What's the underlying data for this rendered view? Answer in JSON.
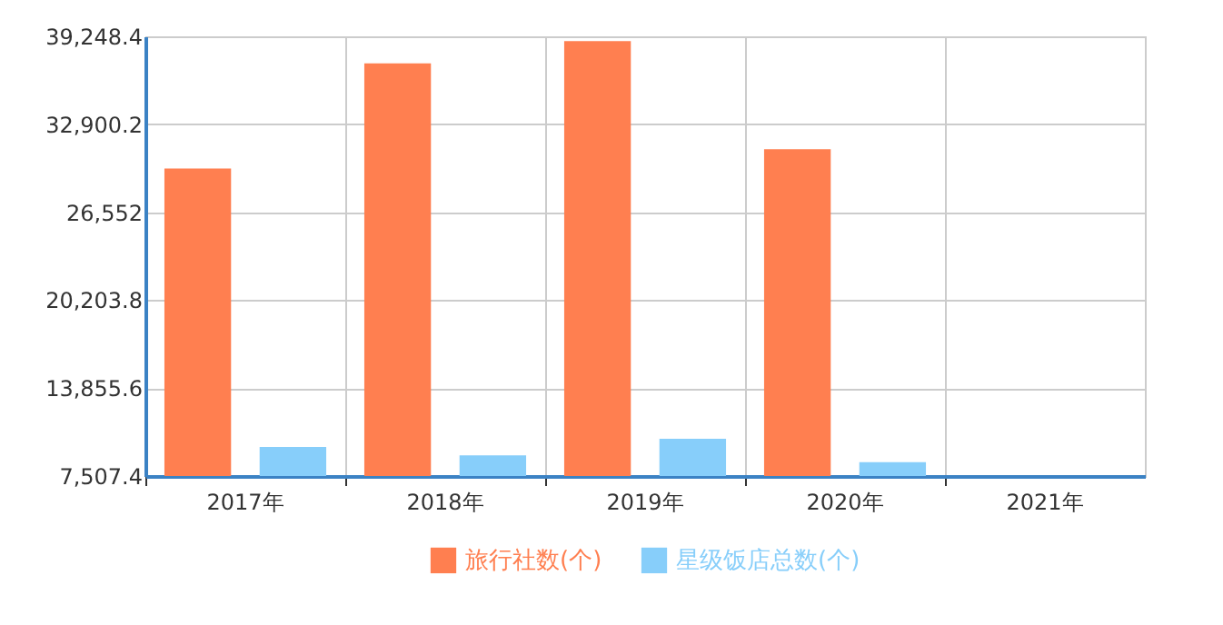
{
  "chart_data": {
    "type": "bar",
    "categories": [
      "2017年",
      "2018年",
      "2019年",
      "2020年",
      "2021年"
    ],
    "series": [
      {
        "name": "旅行社数(个)",
        "color": "#ff7f50",
        "values": [
          29700,
          37300,
          38900,
          31100,
          null
        ]
      },
      {
        "name": "星级饭店总数(个)",
        "color": "#87cefa",
        "values": [
          9600,
          9000,
          10200,
          8500,
          null
        ]
      }
    ],
    "ylim": [
      7507.4,
      39248.4
    ],
    "yticks": [
      {
        "value": 7507.4,
        "label": "7,507.4"
      },
      {
        "value": 13855.6,
        "label": "13,855.6"
      },
      {
        "value": 20203.8,
        "label": "20,203.8"
      },
      {
        "value": 26552,
        "label": "26,552"
      },
      {
        "value": 32900.2,
        "label": "32,900.2"
      },
      {
        "value": 39248.4,
        "label": "39,248.4"
      }
    ],
    "grid": true,
    "legend": "bottom"
  }
}
